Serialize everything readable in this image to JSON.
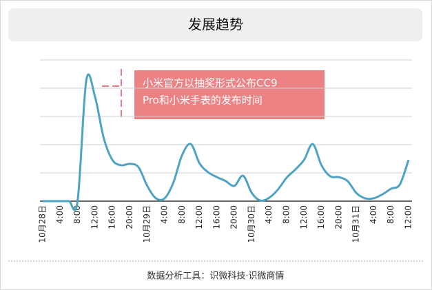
{
  "chart_data": {
    "type": "line",
    "title": "发展趋势",
    "categories": [
      "10月28日",
      null,
      "4:00",
      null,
      "8:00",
      null,
      "12:00",
      null,
      "16:00",
      null,
      "20:00",
      null,
      "10月29日",
      null,
      "4:00",
      null,
      "8:00",
      null,
      "12:00",
      null,
      "16:00",
      null,
      "20:00",
      null,
      "10月30日",
      null,
      "4:00",
      null,
      "8:00",
      null,
      "12:00",
      null,
      "16:00",
      null,
      "20:00",
      null,
      "10月31日",
      null,
      "4:00",
      null,
      "8:00",
      null,
      "12:00"
    ],
    "series": [
      {
        "color": "#4ea3c4",
        "values": [
          0,
          0,
          0,
          0,
          0,
          4.27,
          3.7,
          2.24,
          1.46,
          1.27,
          1.32,
          1.2,
          0.54,
          0.1,
          0.1,
          0.66,
          1.63,
          2.02,
          1.34,
          1.02,
          0.85,
          0.71,
          0.54,
          0.9,
          0.29,
          0.02,
          0.12,
          0.41,
          0.83,
          1.12,
          1.46,
          2.02,
          1.27,
          0.88,
          0.85,
          0.71,
          0.29,
          0.1,
          0.1,
          0.24,
          0.44,
          0.59,
          1.46
        ]
      }
    ],
    "ylim": [
      0,
      5
    ],
    "yticks": [
      0,
      1,
      2,
      3,
      4,
      5
    ],
    "grid": true,
    "annotation": [
      "小米官方以抽奖形式公布CC9",
      "Pro和小米手表的发布时间"
    ],
    "footer": "数据分析工具：识微科技·识微商情"
  }
}
